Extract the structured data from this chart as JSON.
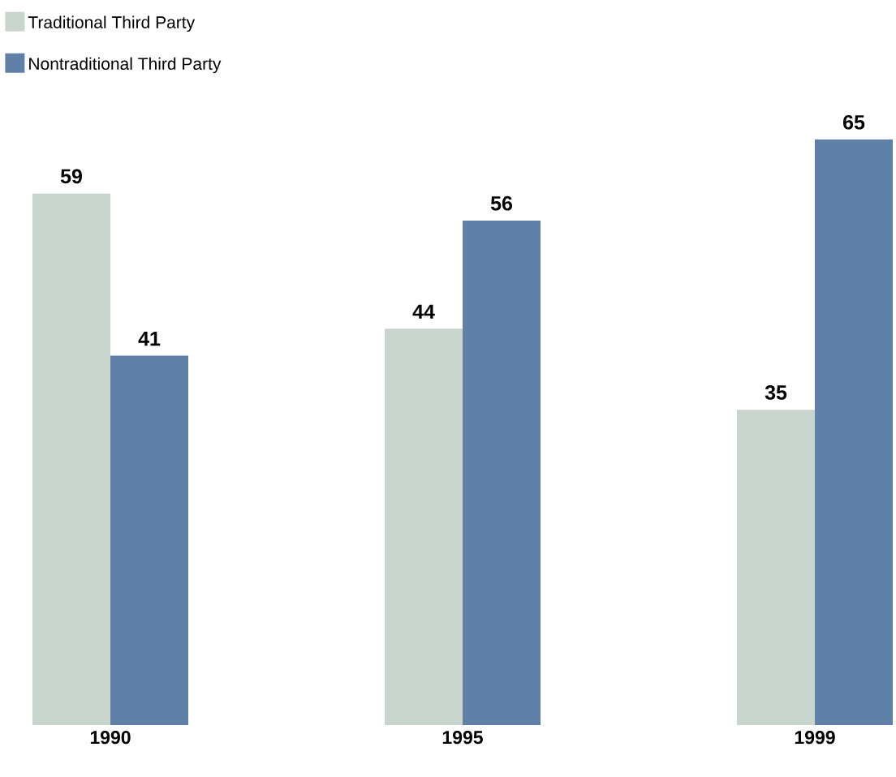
{
  "chart_data": {
    "type": "bar",
    "categories": [
      "1990",
      "1995",
      "1999"
    ],
    "series": [
      {
        "name": "Traditional Third Party",
        "color": "#c8d5cc",
        "values": [
          59,
          44,
          35
        ]
      },
      {
        "name": "Nontraditional Third Party",
        "color": "#6080a8",
        "values": [
          41,
          56,
          65
        ]
      }
    ],
    "data_labels": true,
    "legend": "top left"
  }
}
